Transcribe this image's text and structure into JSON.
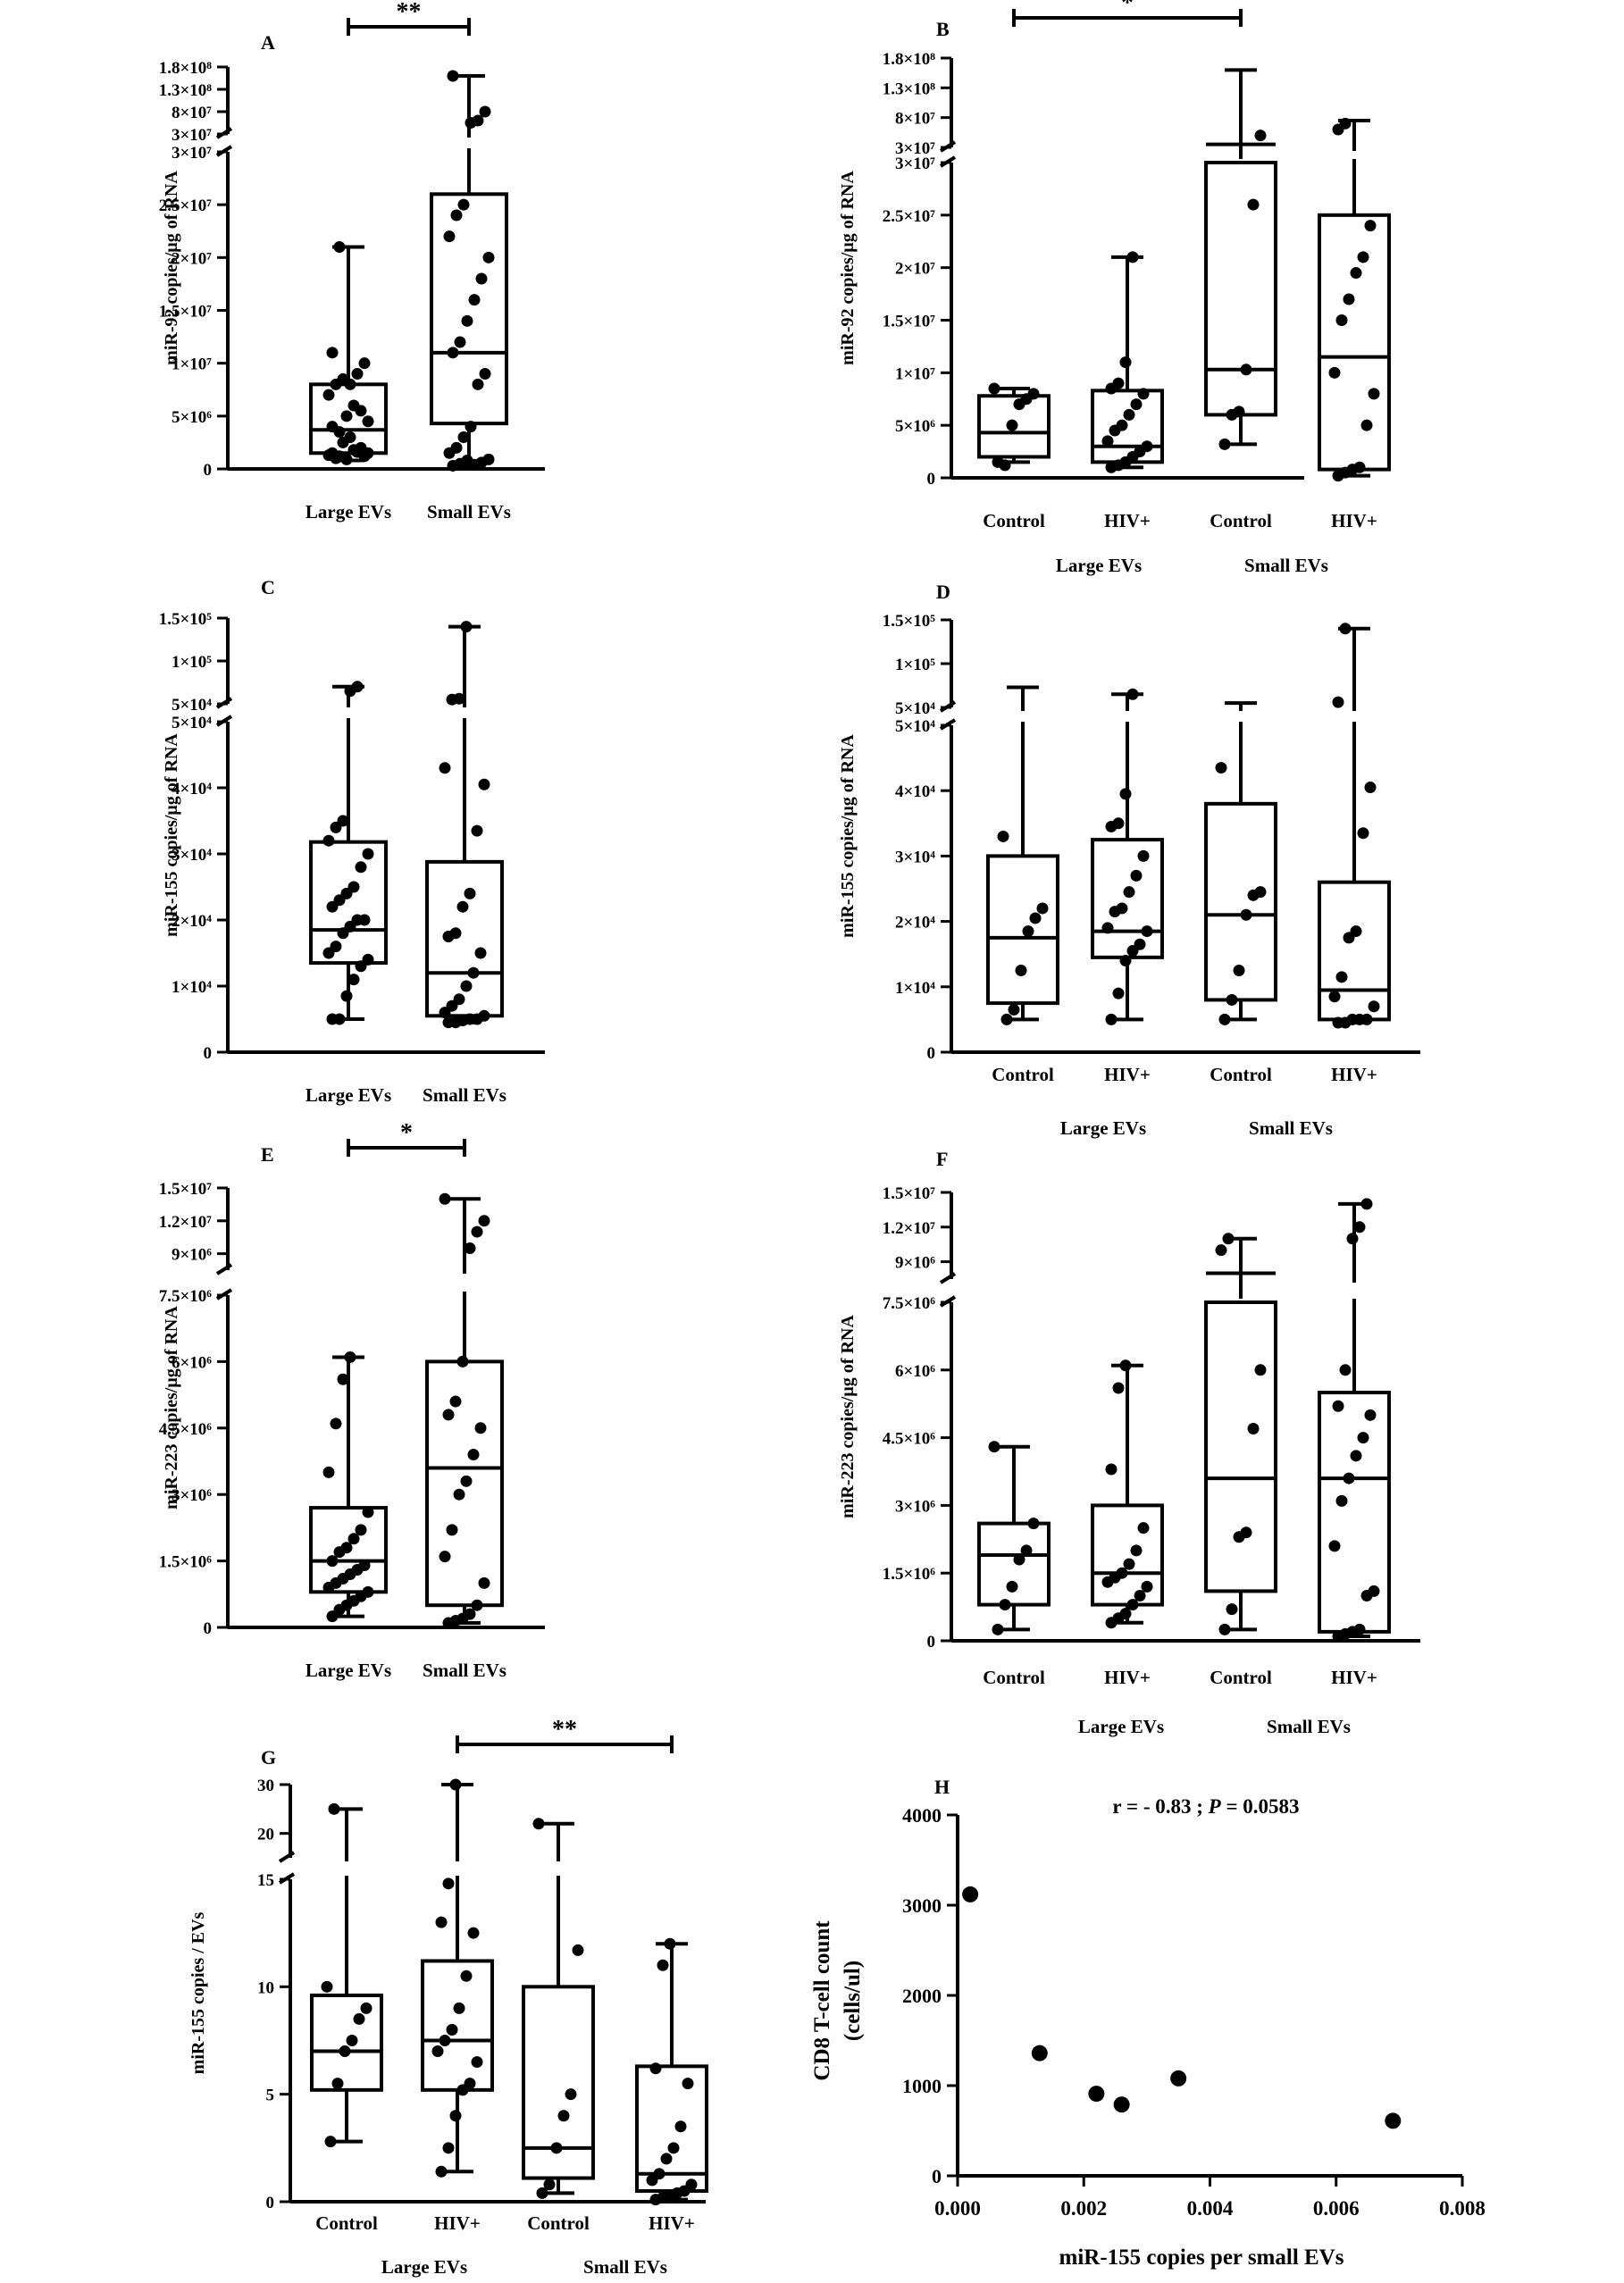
{
  "charts": [
    {
      "id": "A",
      "panel_label": "A",
      "ylabel": "miR-92 copies/µg of RNA",
      "break": {
        "lower": [
          0,
          30000000
        ],
        "upper": [
          30000000,
          180000000
        ],
        "lower_ticks": [
          {
            "v": 0,
            "label": "0"
          },
          {
            "v": 5000000,
            "label": "5×10⁶"
          },
          {
            "v": 10000000,
            "label": "1×10⁷"
          },
          {
            "v": 15000000,
            "label": "1.5×10⁷"
          },
          {
            "v": 20000000,
            "label": "2×10⁷"
          },
          {
            "v": 25000000,
            "label": "2.5×10⁷"
          },
          {
            "v": 30000000,
            "label": "3×10⁷"
          }
        ],
        "upper_ticks": [
          {
            "v": 30000000,
            "label": "3×10⁷"
          },
          {
            "v": 80000000,
            "label": "8×10⁷"
          },
          {
            "v": 130000000,
            "label": "1.3×10⁸"
          },
          {
            "v": 180000000,
            "label": "1.8×10⁸"
          }
        ]
      },
      "categories": [
        "Large EVs",
        "Small EVs"
      ],
      "groups": [],
      "boxes": [
        {
          "min": 800000,
          "q1": 1500000,
          "median": 3700000,
          "q3": 8000000,
          "max": 21000000
        },
        {
          "min": 300000,
          "q1": 4300000,
          "median": 11000000,
          "q3": 26000000,
          "max": 160000000
        }
      ],
      "points": [
        [
          1500000,
          1200000,
          900000,
          1800000,
          2000000,
          1500000,
          1300000,
          1000000,
          2500000,
          3000000,
          1600000,
          1200000,
          4000000,
          3500000,
          5000000,
          6000000,
          5500000,
          4500000,
          7000000,
          8000000,
          8500000,
          8000000,
          9000000,
          10000000,
          11000000,
          21000000
        ],
        [
          300000,
          500000,
          800000,
          400000,
          600000,
          900000,
          1500000,
          2000000,
          3000000,
          4000000,
          8000000,
          9000000,
          11000000,
          12000000,
          14000000,
          16000000,
          18000000,
          20000000,
          22000000,
          24000000,
          25000000,
          55000000,
          60000000,
          80000000,
          160000000
        ]
      ],
      "significance": [
        {
          "from": 0,
          "to": 1,
          "label": "**"
        }
      ]
    },
    {
      "id": "B",
      "panel_label": "B",
      "ylabel": "miR-92 copies/µg of RNA",
      "break": {
        "lower": [
          0,
          30000000
        ],
        "upper": [
          30000000,
          180000000
        ],
        "lower_ticks": [
          {
            "v": 0,
            "label": "0"
          },
          {
            "v": 5000000,
            "label": "5×10⁶"
          },
          {
            "v": 10000000,
            "label": "1×10⁷"
          },
          {
            "v": 15000000,
            "label": "1.5×10⁷"
          },
          {
            "v": 20000000,
            "label": "2×10⁷"
          },
          {
            "v": 25000000,
            "label": "2.5×10⁷"
          },
          {
            "v": 30000000,
            "label": "3×10⁷"
          }
        ],
        "upper_ticks": [
          {
            "v": 30000000,
            "label": "3×10⁷"
          },
          {
            "v": 80000000,
            "label": "8×10⁷"
          },
          {
            "v": 130000000,
            "label": "1.3×10⁸"
          },
          {
            "v": 180000000,
            "label": "1.8×10⁸"
          }
        ]
      },
      "categories": [
        "Control",
        "HIV+",
        "Control",
        "HIV+"
      ],
      "groups": [
        "Large EVs",
        "Small EVs"
      ],
      "boxes": [
        {
          "min": 1500000,
          "q1": 2000000,
          "median": 4300000,
          "q3": 7800000,
          "max": 8500000
        },
        {
          "min": 1000000,
          "q1": 1500000,
          "median": 3000000,
          "q3": 8300000,
          "max": 21000000
        },
        {
          "min": 3200000,
          "q1": 6000000,
          "median": 10300000,
          "q3": 35000000,
          "max": 160000000
        },
        {
          "min": 200000,
          "q1": 800000,
          "median": 11500000,
          "q3": 25000000,
          "max": 75000000
        }
      ],
      "points": [
        [
          1500000,
          1200000,
          5000000,
          7000000,
          7500000,
          8000000,
          8500000
        ],
        [
          1000000,
          1200000,
          1500000,
          2000000,
          2500000,
          3000000,
          3500000,
          4500000,
          5000000,
          6000000,
          7000000,
          8000000,
          8500000,
          9000000,
          11000000,
          21000000
        ],
        [
          3200000,
          6000000,
          6300000,
          10300000,
          26000000,
          50000000
        ],
        [
          200000,
          500000,
          800000,
          1000000,
          5000000,
          8000000,
          10000000,
          15000000,
          17000000,
          19500000,
          21000000,
          24000000,
          60000000,
          70000000
        ]
      ],
      "significance": [
        {
          "from": 0,
          "to": 2,
          "label": "*"
        }
      ]
    },
    {
      "id": "C",
      "panel_label": "C",
      "ylabel": "miR-155 copies/µg of RNA",
      "break": {
        "lower": [
          0,
          50000
        ],
        "upper": [
          50000,
          150000
        ],
        "lower_ticks": [
          {
            "v": 0,
            "label": "0"
          },
          {
            "v": 10000,
            "label": "1×10⁴"
          },
          {
            "v": 20000,
            "label": "2×10⁴"
          },
          {
            "v": 30000,
            "label": "3×10⁴"
          },
          {
            "v": 40000,
            "label": "4×10⁴"
          },
          {
            "v": 50000,
            "label": "5×10⁴"
          }
        ],
        "upper_ticks": [
          {
            "v": 50000,
            "label": "5×10⁴"
          },
          {
            "v": 100000,
            "label": "1×10⁵"
          },
          {
            "v": 150000,
            "label": "1.5×10⁵"
          }
        ]
      },
      "categories": [
        "Large EVs",
        "Small EVs"
      ],
      "groups": [],
      "boxes": [
        {
          "min": 5000,
          "q1": 13500,
          "median": 18500,
          "q3": 31800,
          "max": 70000
        },
        {
          "min": 4500,
          "q1": 5500,
          "median": 12000,
          "q3": 28800,
          "max": 140000
        }
      ],
      "points": [
        [
          5000,
          5000,
          8500,
          11000,
          13000,
          14000,
          15000,
          16000,
          18000,
          19000,
          20000,
          20000,
          22000,
          23000,
          24000,
          25000,
          28000,
          30000,
          32000,
          34000,
          35000,
          65000,
          70000
        ],
        [
          4500,
          4500,
          4800,
          5000,
          5000,
          5500,
          6000,
          7000,
          8000,
          10000,
          12000,
          15000,
          17500,
          18000,
          22000,
          24000,
          33500,
          40500,
          43000,
          55000,
          56000,
          140000
        ]
      ],
      "significance": []
    },
    {
      "id": "D",
      "panel_label": "D",
      "ylabel": "miR-155 copies/µg of RNA",
      "break": {
        "lower": [
          0,
          50000
        ],
        "upper": [
          50000,
          150000
        ],
        "lower_ticks": [
          {
            "v": 0,
            "label": "0"
          },
          {
            "v": 10000,
            "label": "1×10⁴"
          },
          {
            "v": 20000,
            "label": "2×10⁴"
          },
          {
            "v": 30000,
            "label": "3×10⁴"
          },
          {
            "v": 40000,
            "label": "4×10⁴"
          },
          {
            "v": 50000,
            "label": "5×10⁴"
          }
        ],
        "upper_ticks": [
          {
            "v": 50000,
            "label": "5×10⁴"
          },
          {
            "v": 100000,
            "label": "1×10⁵"
          },
          {
            "v": 150000,
            "label": "1.5×10⁵"
          }
        ]
      },
      "categories": [
        "Control",
        "HIV+",
        "Control",
        "HIV+"
      ],
      "groups": [
        "Large EVs",
        "Small EVs"
      ],
      "boxes": [
        {
          "min": 5000,
          "q1": 7500,
          "median": 17500,
          "q3": 30000,
          "max": 73000
        },
        {
          "min": 5000,
          "q1": 14500,
          "median": 18500,
          "q3": 32500,
          "max": 65000
        },
        {
          "min": 5000,
          "q1": 8000,
          "median": 21000,
          "q3": 38000,
          "max": 55000
        },
        {
          "min": 4500,
          "q1": 5000,
          "median": 9500,
          "q3": 26000,
          "max": 140000
        }
      ],
      "points": [
        [
          5000,
          6500,
          12500,
          18500,
          20500,
          22000,
          33000
        ],
        [
          5000,
          9000,
          14000,
          15500,
          16500,
          18500,
          19000,
          21500,
          22000,
          24500,
          27000,
          30000,
          34500,
          35000,
          39500,
          65000
        ],
        [
          5000,
          8000,
          12500,
          21000,
          24000,
          24500,
          43500
        ],
        [
          4500,
          4500,
          5000,
          5000,
          5000,
          7000,
          8500,
          11500,
          17500,
          18500,
          33500,
          40500,
          56000,
          140000
        ]
      ],
      "significance": []
    },
    {
      "id": "E",
      "panel_label": "E",
      "ylabel": "miR-223 copies/µg of RNA",
      "break": {
        "lower": [
          0,
          7500000
        ],
        "upper": [
          7500000,
          15000000
        ],
        "lower_ticks": [
          {
            "v": 0,
            "label": "0"
          },
          {
            "v": 1500000,
            "label": "1.5×10⁶"
          },
          {
            "v": 3000000,
            "label": "3×10⁶"
          },
          {
            "v": 4500000,
            "label": "4.5×10⁶"
          },
          {
            "v": 6000000,
            "label": "6×10⁶"
          },
          {
            "v": 7500000,
            "label": "7.5×10⁶"
          }
        ],
        "upper_ticks": [
          {
            "v": 9000000,
            "label": "9×10⁶"
          },
          {
            "v": 12000000,
            "label": "1.2×10⁷"
          },
          {
            "v": 15000000,
            "label": "1.5×10⁷"
          }
        ]
      },
      "categories": [
        "Large EVs",
        "Small EVs"
      ],
      "groups": [],
      "boxes": [
        {
          "min": 250000,
          "q1": 800000,
          "median": 1500000,
          "q3": 2700000,
          "max": 6100000
        },
        {
          "min": 100000,
          "q1": 500000,
          "median": 3600000,
          "q3": 6000000,
          "max": 14000000
        }
      ],
      "points": [
        [
          250000,
          400000,
          500000,
          600000,
          700000,
          800000,
          900000,
          1000000,
          1100000,
          1200000,
          1300000,
          1400000,
          1500000,
          1700000,
          1800000,
          2000000,
          2200000,
          2600000,
          3500000,
          4600000,
          5600000,
          6100000
        ],
        [
          100000,
          150000,
          200000,
          300000,
          500000,
          1000000,
          1600000,
          2200000,
          3000000,
          3300000,
          3900000,
          4500000,
          4800000,
          5100000,
          6000000,
          9500000,
          11000000,
          12000000,
          14000000
        ]
      ],
      "significance": [
        {
          "from": 0,
          "to": 1,
          "label": "*"
        }
      ]
    },
    {
      "id": "F",
      "panel_label": "F",
      "ylabel": "miR-223 copies/µg of RNA",
      "break": {
        "lower": [
          0,
          7500000
        ],
        "upper": [
          7500000,
          15000000
        ],
        "lower_ticks": [
          {
            "v": 0,
            "label": "0"
          },
          {
            "v": 1500000,
            "label": "1.5×10⁶"
          },
          {
            "v": 3000000,
            "label": "3×10⁶"
          },
          {
            "v": 4500000,
            "label": "4.5×10⁶"
          },
          {
            "v": 6000000,
            "label": "6×10⁶"
          },
          {
            "v": 7500000,
            "label": "7.5×10⁶"
          }
        ],
        "upper_ticks": [
          {
            "v": 9000000,
            "label": "9×10⁶"
          },
          {
            "v": 12000000,
            "label": "1.2×10⁷"
          },
          {
            "v": 15000000,
            "label": "1.5×10⁷"
          }
        ]
      },
      "categories": [
        "Control",
        "HIV+",
        "Control",
        "HIV+"
      ],
      "groups": [
        "Large EVs",
        "Small EVs"
      ],
      "boxes": [
        {
          "min": 250000,
          "q1": 800000,
          "median": 1900000,
          "q3": 2600000,
          "max": 4300000
        },
        {
          "min": 400000,
          "q1": 800000,
          "median": 1500000,
          "q3": 3000000,
          "max": 6100000
        },
        {
          "min": 250000,
          "q1": 1100000,
          "median": 3600000,
          "q3": 8000000,
          "max": 11000000
        },
        {
          "min": 100000,
          "q1": 200000,
          "median": 3600000,
          "q3": 5500000,
          "max": 14000000
        }
      ],
      "points": [
        [
          250000,
          800000,
          1200000,
          1800000,
          2000000,
          2600000,
          4300000
        ],
        [
          400000,
          500000,
          600000,
          800000,
          1000000,
          1200000,
          1300000,
          1400000,
          1500000,
          1700000,
          2000000,
          2500000,
          3800000,
          5600000,
          6100000
        ],
        [
          250000,
          700000,
          2300000,
          2400000,
          4700000,
          6000000,
          10000000,
          11000000
        ],
        [
          100000,
          150000,
          200000,
          250000,
          1000000,
          1100000,
          2100000,
          3100000,
          3600000,
          4100000,
          4500000,
          5000000,
          5200000,
          6000000,
          11000000,
          12000000,
          14000000
        ]
      ],
      "significance": []
    },
    {
      "id": "G",
      "panel_label": "G",
      "ylabel": "miR-155 copies / EVs",
      "break": {
        "lower": [
          0,
          15
        ],
        "upper": [
          15,
          30
        ],
        "lower_ticks": [
          {
            "v": 0,
            "label": "0"
          },
          {
            "v": 5,
            "label": "5"
          },
          {
            "v": 10,
            "label": "10"
          },
          {
            "v": 15,
            "label": "15"
          }
        ],
        "upper_ticks": [
          {
            "v": 20,
            "label": "20"
          },
          {
            "v": 30,
            "label": "30"
          }
        ]
      },
      "categories": [
        "Control",
        "HIV+",
        "Control",
        "HIV+"
      ],
      "groups": [
        "Large EVs",
        "Small EVs"
      ],
      "boxes": [
        {
          "min": 2.8,
          "q1": 5.2,
          "median": 7.0,
          "q3": 9.6,
          "max": 25
        },
        {
          "min": 1.4,
          "q1": 5.2,
          "median": 7.5,
          "q3": 11.2,
          "max": 30
        },
        {
          "min": 0.4,
          "q1": 1.1,
          "median": 2.5,
          "q3": 10.0,
          "max": 22
        },
        {
          "min": 0.1,
          "q1": 0.5,
          "median": 1.3,
          "q3": 6.3,
          "max": 12
        }
      ],
      "points": [
        [
          2.8,
          5.5,
          7.0,
          7.5,
          8.5,
          9.0,
          10.0,
          25
        ],
        [
          1.4,
          2.5,
          4.0,
          5.2,
          5.5,
          6.5,
          7.0,
          7.5,
          8.0,
          9.0,
          10.5,
          12.5,
          13.0,
          14.8,
          30
        ],
        [
          0.4,
          0.8,
          2.5,
          4.0,
          5.0,
          11.7,
          22
        ],
        [
          0.1,
          0.2,
          0.3,
          0.4,
          0.5,
          0.8,
          1.0,
          1.3,
          2.0,
          2.5,
          3.5,
          5.5,
          6.2,
          11.0,
          12.0
        ]
      ],
      "significance": [
        {
          "from": 1,
          "to": 3,
          "label": "**"
        }
      ]
    },
    {
      "id": "H",
      "panel_label": "H",
      "type": "scatter",
      "stat_prefix": "r = - 0.83 ; ",
      "stat_p_italic": "P",
      "stat_suffix": " = 0.0583",
      "xlabel": "miR-155 copies per small EVs",
      "ylabel_line1": "CD8 T-cell count",
      "ylabel_line2": "(cells/ul)",
      "xlim": [
        0,
        0.008
      ],
      "ylim": [
        0,
        4000
      ],
      "x_ticks": [
        {
          "v": 0,
          "label": "0.000"
        },
        {
          "v": 0.002,
          "label": "0.002"
        },
        {
          "v": 0.004,
          "label": "0.004"
        },
        {
          "v": 0.006,
          "label": "0.006"
        },
        {
          "v": 0.008,
          "label": "0.008"
        }
      ],
      "y_ticks": [
        {
          "v": 0,
          "label": "0"
        },
        {
          "v": 1000,
          "label": "1000"
        },
        {
          "v": 2000,
          "label": "2000"
        },
        {
          "v": 3000,
          "label": "3000"
        },
        {
          "v": 4000,
          "label": "4000"
        }
      ],
      "x": [
        0.0002,
        0.0013,
        0.0022,
        0.0026,
        0.0035,
        0.0069
      ],
      "y": [
        3120,
        1360,
        910,
        790,
        1080,
        610
      ]
    }
  ]
}
